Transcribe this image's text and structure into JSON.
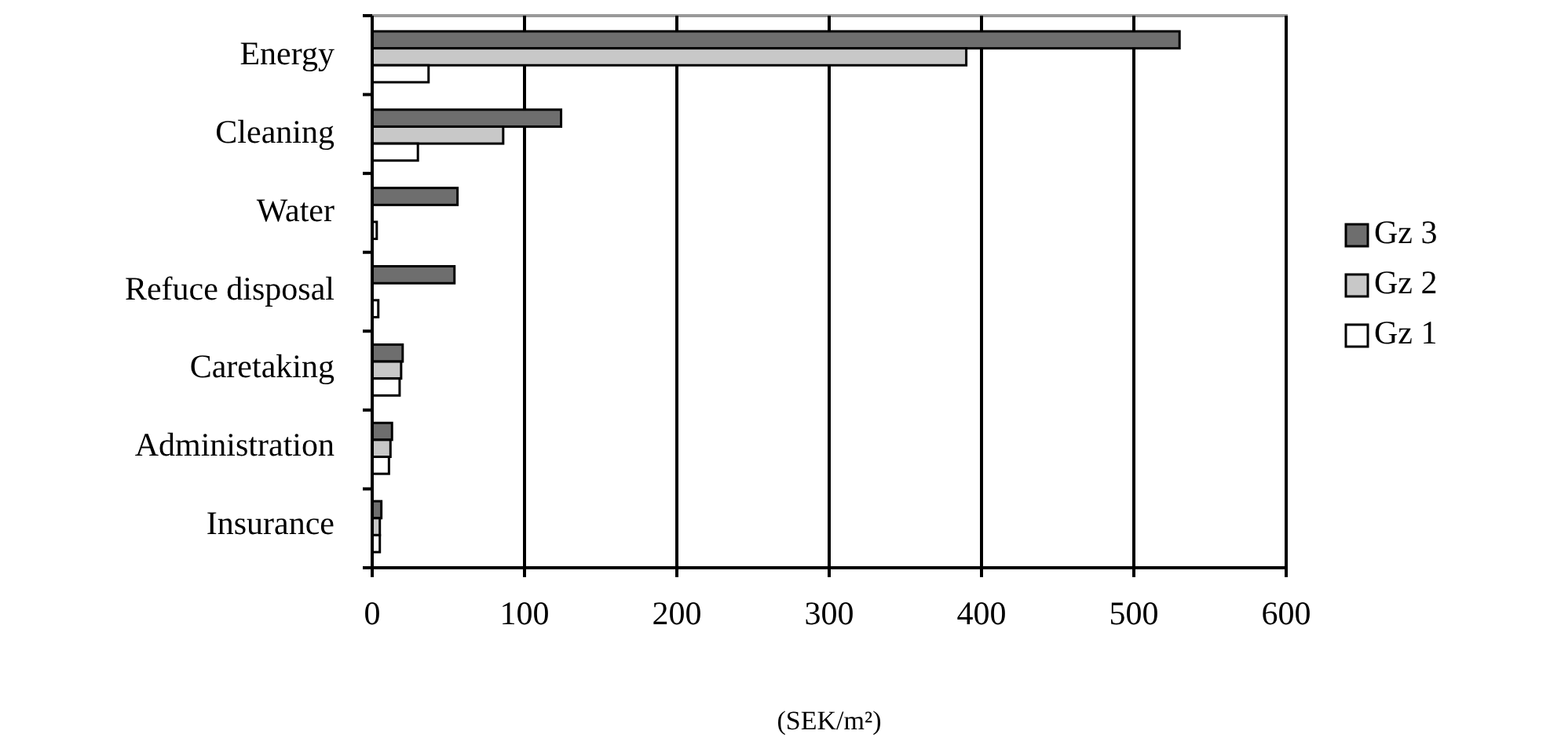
{
  "chart_data": {
    "type": "bar",
    "orientation": "horizontal",
    "xlabel": "(SEK/m²)",
    "categories": [
      "Energy",
      "Cleaning",
      "Water",
      "Refuce disposal",
      "Caretaking",
      "Administration",
      "Insurance"
    ],
    "series": [
      {
        "name": "Gz 3",
        "color": "#6e6e6e",
        "values": [
          530,
          124,
          56,
          54,
          20,
          13,
          6
        ]
      },
      {
        "name": "Gz 2",
        "color": "#c8c8c8",
        "values": [
          390,
          86,
          0,
          null,
          19,
          12,
          5
        ]
      },
      {
        "name": "Gz 1",
        "color": "#ffffff",
        "values": [
          37,
          30,
          3,
          4,
          18,
          11,
          5
        ]
      }
    ],
    "xlim": [
      0,
      600
    ],
    "xticks": [
      0,
      100,
      200,
      300,
      400,
      500,
      600
    ],
    "grid": "x",
    "legend": "right"
  }
}
